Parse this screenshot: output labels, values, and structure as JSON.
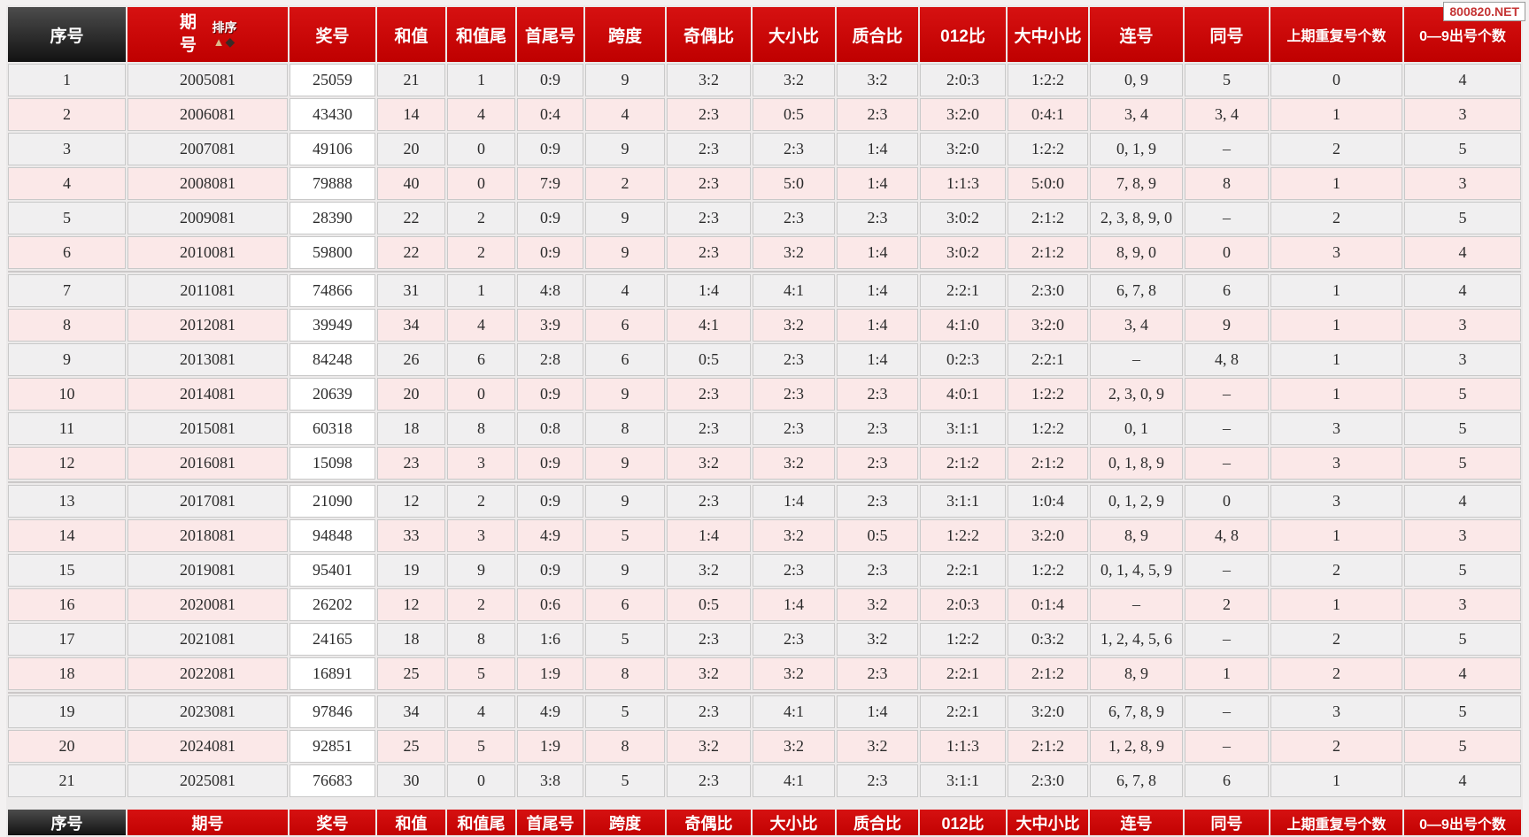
{
  "watermark": "800820.NET",
  "header": {
    "sort_label": "排序",
    "sort_up_icon": "▲",
    "sort_down_icon": "◆"
  },
  "table": {
    "columns": [
      {
        "key": "xuhao",
        "label": "序号"
      },
      {
        "key": "qihao",
        "label": "期号"
      },
      {
        "key": "jianghao",
        "label": "奖号"
      },
      {
        "key": "hezhi",
        "label": "和值"
      },
      {
        "key": "hezhiwei",
        "label": "和值尾"
      },
      {
        "key": "shouweihao",
        "label": "首尾号"
      },
      {
        "key": "kuadu",
        "label": "跨度"
      },
      {
        "key": "jioubi",
        "label": "奇偶比"
      },
      {
        "key": "daxiaobi",
        "label": "大小比"
      },
      {
        "key": "zhihebi",
        "label": "质合比"
      },
      {
        "key": "bi012",
        "label": "012比"
      },
      {
        "key": "dazhongxiaobi",
        "label": "大中小比"
      },
      {
        "key": "lianhao",
        "label": "连号"
      },
      {
        "key": "tonghao",
        "label": "同号"
      },
      {
        "key": "shangqichongfu",
        "label": "上期重复号个数"
      },
      {
        "key": "chuhaogeshu",
        "label": "0—9出号个数"
      }
    ],
    "group_breaks": [
      6,
      12,
      18
    ],
    "rows": [
      [
        "1",
        "2005081",
        "25059",
        "21",
        "1",
        "0:9",
        "9",
        "3:2",
        "3:2",
        "3:2",
        "2:0:3",
        "1:2:2",
        "0, 9",
        "5",
        "0",
        "4"
      ],
      [
        "2",
        "2006081",
        "43430",
        "14",
        "4",
        "0:4",
        "4",
        "2:3",
        "0:5",
        "2:3",
        "3:2:0",
        "0:4:1",
        "3, 4",
        "3, 4",
        "1",
        "3"
      ],
      [
        "3",
        "2007081",
        "49106",
        "20",
        "0",
        "0:9",
        "9",
        "2:3",
        "2:3",
        "1:4",
        "3:2:0",
        "1:2:2",
        "0, 1, 9",
        "–",
        "2",
        "5"
      ],
      [
        "4",
        "2008081",
        "79888",
        "40",
        "0",
        "7:9",
        "2",
        "2:3",
        "5:0",
        "1:4",
        "1:1:3",
        "5:0:0",
        "7, 8, 9",
        "8",
        "1",
        "3"
      ],
      [
        "5",
        "2009081",
        "28390",
        "22",
        "2",
        "0:9",
        "9",
        "2:3",
        "2:3",
        "2:3",
        "3:0:2",
        "2:1:2",
        "2, 3, 8, 9, 0",
        "–",
        "2",
        "5"
      ],
      [
        "6",
        "2010081",
        "59800",
        "22",
        "2",
        "0:9",
        "9",
        "2:3",
        "3:2",
        "1:4",
        "3:0:2",
        "2:1:2",
        "8, 9, 0",
        "0",
        "3",
        "4"
      ],
      [
        "7",
        "2011081",
        "74866",
        "31",
        "1",
        "4:8",
        "4",
        "1:4",
        "4:1",
        "1:4",
        "2:2:1",
        "2:3:0",
        "6, 7, 8",
        "6",
        "1",
        "4"
      ],
      [
        "8",
        "2012081",
        "39949",
        "34",
        "4",
        "3:9",
        "6",
        "4:1",
        "3:2",
        "1:4",
        "4:1:0",
        "3:2:0",
        "3, 4",
        "9",
        "1",
        "3"
      ],
      [
        "9",
        "2013081",
        "84248",
        "26",
        "6",
        "2:8",
        "6",
        "0:5",
        "2:3",
        "1:4",
        "0:2:3",
        "2:2:1",
        "–",
        "4, 8",
        "1",
        "3"
      ],
      [
        "10",
        "2014081",
        "20639",
        "20",
        "0",
        "0:9",
        "9",
        "2:3",
        "2:3",
        "2:3",
        "4:0:1",
        "1:2:2",
        "2, 3, 0, 9",
        "–",
        "1",
        "5"
      ],
      [
        "11",
        "2015081",
        "60318",
        "18",
        "8",
        "0:8",
        "8",
        "2:3",
        "2:3",
        "2:3",
        "3:1:1",
        "1:2:2",
        "0, 1",
        "–",
        "3",
        "5"
      ],
      [
        "12",
        "2016081",
        "15098",
        "23",
        "3",
        "0:9",
        "9",
        "3:2",
        "3:2",
        "2:3",
        "2:1:2",
        "2:1:2",
        "0, 1, 8, 9",
        "–",
        "3",
        "5"
      ],
      [
        "13",
        "2017081",
        "21090",
        "12",
        "2",
        "0:9",
        "9",
        "2:3",
        "1:4",
        "2:3",
        "3:1:1",
        "1:0:4",
        "0, 1, 2, 9",
        "0",
        "3",
        "4"
      ],
      [
        "14",
        "2018081",
        "94848",
        "33",
        "3",
        "4:9",
        "5",
        "1:4",
        "3:2",
        "0:5",
        "1:2:2",
        "3:2:0",
        "8, 9",
        "4, 8",
        "1",
        "3"
      ],
      [
        "15",
        "2019081",
        "95401",
        "19",
        "9",
        "0:9",
        "9",
        "3:2",
        "2:3",
        "2:3",
        "2:2:1",
        "1:2:2",
        "0, 1, 4, 5, 9",
        "–",
        "2",
        "5"
      ],
      [
        "16",
        "2020081",
        "26202",
        "12",
        "2",
        "0:6",
        "6",
        "0:5",
        "1:4",
        "3:2",
        "2:0:3",
        "0:1:4",
        "–",
        "2",
        "1",
        "3"
      ],
      [
        "17",
        "2021081",
        "24165",
        "18",
        "8",
        "1:6",
        "5",
        "2:3",
        "2:3",
        "3:2",
        "1:2:2",
        "0:3:2",
        "1, 2, 4, 5, 6",
        "–",
        "2",
        "5"
      ],
      [
        "18",
        "2022081",
        "16891",
        "25",
        "5",
        "1:9",
        "8",
        "3:2",
        "3:2",
        "2:3",
        "2:2:1",
        "2:1:2",
        "8, 9",
        "1",
        "2",
        "4"
      ],
      [
        "19",
        "2023081",
        "97846",
        "34",
        "4",
        "4:9",
        "5",
        "2:3",
        "4:1",
        "1:4",
        "2:2:1",
        "3:2:0",
        "6, 7, 8, 9",
        "–",
        "3",
        "5"
      ],
      [
        "20",
        "2024081",
        "92851",
        "25",
        "5",
        "1:9",
        "8",
        "3:2",
        "3:2",
        "3:2",
        "1:1:3",
        "2:1:2",
        "1, 2, 8, 9",
        "–",
        "2",
        "5"
      ],
      [
        "21",
        "2025081",
        "76683",
        "30",
        "0",
        "3:8",
        "5",
        "2:3",
        "4:1",
        "2:3",
        "3:1:1",
        "2:3:0",
        "6, 7, 8",
        "6",
        "1",
        "4"
      ]
    ]
  }
}
